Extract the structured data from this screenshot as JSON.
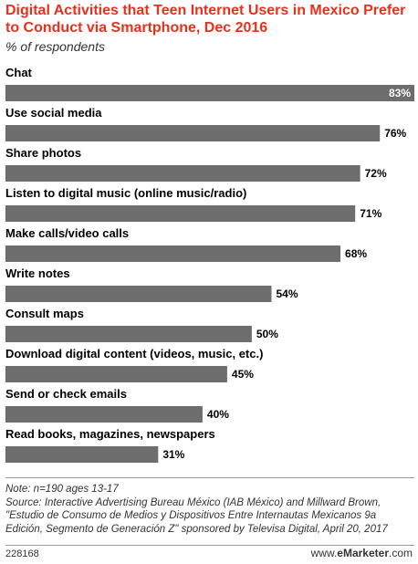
{
  "header": {
    "title": "Digital Activities that Teen Internet Users in Mexico Prefer to Conduct via Smartphone, Dec 2016",
    "subtitle": "% of respondents"
  },
  "chart_data": {
    "type": "bar",
    "orientation": "horizontal",
    "categories": [
      "Chat",
      "Use social media",
      "Share photos",
      "Listen to digital music (online music/radio)",
      "Make calls/video calls",
      "Write notes",
      "Consult maps",
      "Download digital content (videos, music, etc.)",
      "Send or check emails",
      "Read books, magazines, newspapers"
    ],
    "values": [
      83,
      76,
      72,
      71,
      68,
      54,
      50,
      45,
      40,
      31
    ],
    "value_labels": [
      "83%",
      "76%",
      "72%",
      "71%",
      "68%",
      "54%",
      "50%",
      "45%",
      "40%",
      "31%"
    ],
    "xlim": [
      0,
      83
    ],
    "grid": false,
    "bar_color": "#6d6d6d"
  },
  "footer": {
    "note": "Note: n=190 ages 13-17\nSource: Interactive Advertising Bureau México (IAB México) and Millward Brown, \"Estudio de Consumo de Medios y Dispositivos Entre Internautas Mexicanos 9a Edición, Segmento de Generación Z\" sponsored by Televisa Digital, April 20, 2017",
    "chart_id": "228168",
    "brand_prefix": "www.",
    "brand_name": "eMarketer",
    "brand_suffix": ".com"
  }
}
